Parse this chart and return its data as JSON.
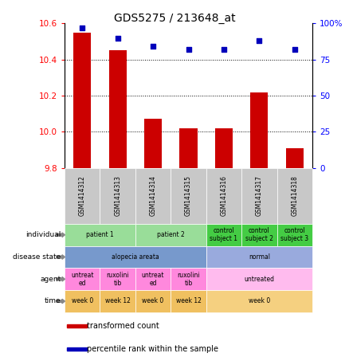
{
  "title": "GDS5275 / 213648_at",
  "samples": [
    "GSM1414312",
    "GSM1414313",
    "GSM1414314",
    "GSM1414315",
    "GSM1414316",
    "GSM1414317",
    "GSM1414318"
  ],
  "bar_values": [
    10.55,
    10.45,
    10.07,
    10.02,
    10.02,
    10.22,
    9.91
  ],
  "bar_base": 9.8,
  "dot_values": [
    97,
    90,
    84,
    82,
    82,
    88,
    82
  ],
  "ylim_left": [
    9.8,
    10.6
  ],
  "ylim_right": [
    0,
    100
  ],
  "yticks_left": [
    9.8,
    10.0,
    10.2,
    10.4,
    10.6
  ],
  "yticks_right": [
    0,
    25,
    50,
    75,
    100
  ],
  "ytick_labels_right": [
    "0",
    "25",
    "50",
    "75",
    "100%"
  ],
  "bar_color": "#cc0000",
  "dot_color": "#0000bb",
  "bg_color": "#ffffff",
  "xticklabel_bg": "#c8c8c8",
  "rows": [
    {
      "label": "individual",
      "cells": [
        {
          "text": "patient 1",
          "span": 2,
          "color": "#99dd99"
        },
        {
          "text": "patient 2",
          "span": 2,
          "color": "#99dd99"
        },
        {
          "text": "control\nsubject 1",
          "span": 1,
          "color": "#44cc44"
        },
        {
          "text": "control\nsubject 2",
          "span": 1,
          "color": "#44cc44"
        },
        {
          "text": "control\nsubject 3",
          "span": 1,
          "color": "#44cc44"
        }
      ]
    },
    {
      "label": "disease state",
      "cells": [
        {
          "text": "alopecia areata",
          "span": 4,
          "color": "#7799cc"
        },
        {
          "text": "normal",
          "span": 3,
          "color": "#99aadd"
        }
      ]
    },
    {
      "label": "agent",
      "cells": [
        {
          "text": "untreat\ned",
          "span": 1,
          "color": "#ff88dd"
        },
        {
          "text": "ruxolini\ntib",
          "span": 1,
          "color": "#ff88dd"
        },
        {
          "text": "untreat\ned",
          "span": 1,
          "color": "#ff88dd"
        },
        {
          "text": "ruxolini\ntib",
          "span": 1,
          "color": "#ff88dd"
        },
        {
          "text": "untreated",
          "span": 3,
          "color": "#ffbbee"
        }
      ]
    },
    {
      "label": "time",
      "cells": [
        {
          "text": "week 0",
          "span": 1,
          "color": "#f0c060"
        },
        {
          "text": "week 12",
          "span": 1,
          "color": "#f0c060"
        },
        {
          "text": "week 0",
          "span": 1,
          "color": "#f0c060"
        },
        {
          "text": "week 12",
          "span": 1,
          "color": "#f0c060"
        },
        {
          "text": "week 0",
          "span": 3,
          "color": "#f5d080"
        }
      ]
    }
  ],
  "legend": [
    {
      "color": "#cc0000",
      "label": "transformed count"
    },
    {
      "color": "#0000bb",
      "label": "percentile rank within the sample"
    }
  ]
}
